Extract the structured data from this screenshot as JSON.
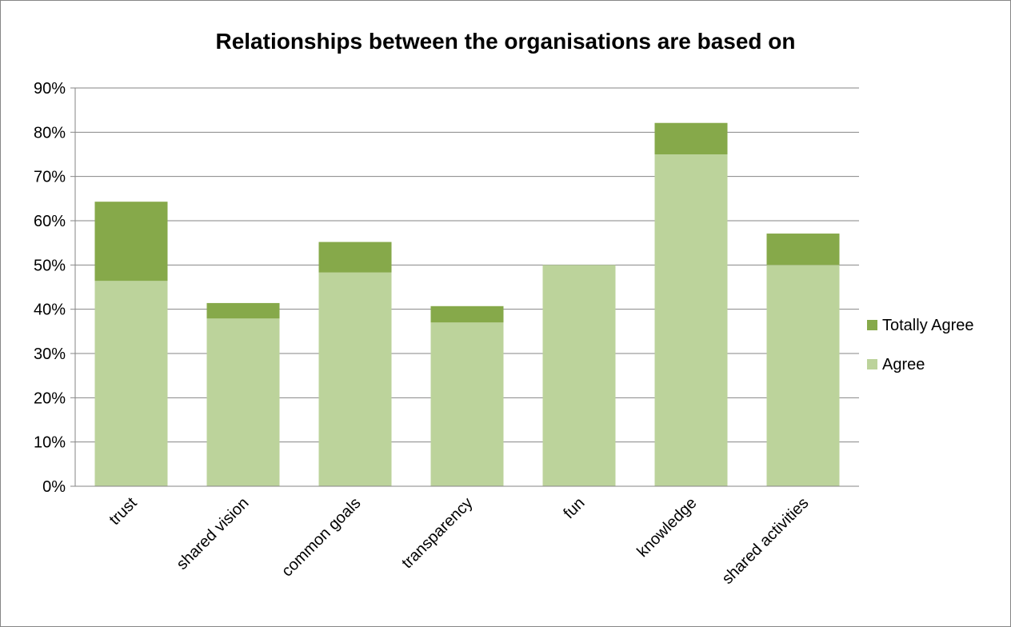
{
  "chart_data": {
    "type": "bar",
    "stacked": true,
    "title": "Relationships between the organisations are based on",
    "xlabel": "",
    "ylabel": "",
    "categories": [
      "trust",
      "shared vision",
      "common goals",
      "transparency",
      "fun",
      "knowledge",
      "shared activities"
    ],
    "series": [
      {
        "name": "Agree",
        "values": [
          46.4,
          37.9,
          48.3,
          37.0,
          50.0,
          75.0,
          50.0
        ],
        "color": "#bcd39b"
      },
      {
        "name": "Totally Agree",
        "values": [
          17.9,
          3.5,
          6.9,
          3.7,
          0.0,
          7.1,
          7.1
        ],
        "color": "#86a94a"
      }
    ],
    "ylim": [
      0,
      90
    ],
    "yticks": [
      0,
      10,
      20,
      30,
      40,
      50,
      60,
      70,
      80,
      90
    ],
    "ytick_format": "percent",
    "grid": true,
    "legend_position": "right",
    "legend_order": [
      "Totally Agree",
      "Agree"
    ]
  }
}
